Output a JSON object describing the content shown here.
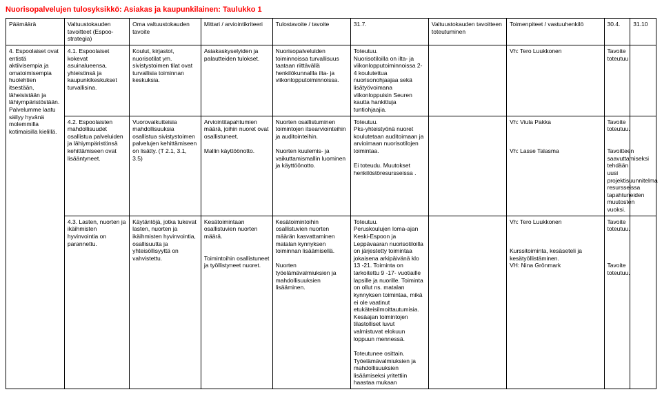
{
  "title": "Nuorisopalvelujen tulosyksikkö: Asiakas ja kaupunkilainen: Taulukko 1",
  "headers": {
    "c1": "Päämäärä",
    "c2": "Valtuustokauden tavoitteet (Espoo-strategia)",
    "c3": "Oma valtuustokauden tavoite",
    "c4": "Mittari / arviointikriteeri",
    "c5": "Tulostavoite / tavoite",
    "c6": "31.7.",
    "c7": "Valtuustokauden tavoitteen toteutuminen",
    "c8": "Toimenpiteet / vastuuhenkilö",
    "c9": "30.4.",
    "c10": "31.10"
  },
  "rows": [
    {
      "c1": "4. Espoolaiset ovat entistä aktiivisempia ja omatoimisempia huolehtien itsestään, läheisistään ja lähiympäristöstään. Palvelumme laatu säilyy hyvänä molemmilla kotimaisilla kielillä.",
      "c2": "4.1. Espoolaiset kokevat asuinalueensa, yhteisönsä ja kaupunkikeskukset turvallisina.",
      "c3": "Koulut, kirjastot, nuorisotilat ym. sivistystoimen tilat ovat turvallisia toiminnan keskuksia.",
      "c4": "Asiakaskyselyiden ja palautteiden tulokset.",
      "c5": "Nuorisopalveluiden toiminnoissa turvallisuus taataan riittävällä henkilökunnallla ilta- ja viikonlopputoiminnoissa.",
      "c6": "Toteutuu.\nNuorisotiloilla on ilta- ja viikonlopputoiminnoissa 2-4 koulutettua nuorisonohjaajaa sekä lisätyövoimana viikonloppuisin Seuren kautta hankittuja tuntiohjaajia.",
      "c7": "",
      "c8": "Vh: Tero Luukkonen",
      "c9": "Tavoite toteutuu",
      "c10": ""
    },
    {
      "c1": "",
      "c2": "4.2. Espoolaisten mahdollisuudet osallistua palveluiden ja lähiympäristönsä kehittämiseen ovat lisääntyneet.",
      "c3": "Vuorovaikutteisia mahdollisuuksia osallistua sivistystoimen palvelujen kehittämiseen on lisätty. (T 2.1, 3.1, 3.5)",
      "c4": "Arviointitapahtumien määrä, joihin nuoret ovat osallistuneet.\n\nMallin käyttöönotto.",
      "c5": "Nuorten osallistuminen toimintojen itsearviointeihin ja auditointeihin.\n\nNuorten kuulemis- ja vaikuttamismallin luominen ja käyttöönotto.",
      "c6": "Toteutuu.\nPks-yhteistyönä nuoret koulutetaan auditoimaan ja arvioimaan nuorisotilojen toimintaa.\n\nEi toteudu.  Muutokset henkilöstöresursseissa .",
      "c7": "",
      "c8": "Vh: Viula Pakka\n\n\n\nVh: Lasse Talasma",
      "c9": "Tavoite toteutuu.\n\n\nTavoitteen saavuttamiseksi tehdään uusi projektisuunnitelma resursseissa tapahtuneiden muutosten vuoksi.",
      "c10": ""
    },
    {
      "c1": "",
      "c2": "4.3. Lasten, nuorten ja ikäihmisten hyvinvointia on parannettu.",
      "c3": "Käytäntöjä, jotka tukevat lasten, nuorten ja ikäihmisten hyvinvointia, osallisuutta ja yhteisöllisyyttä on vahvistettu.",
      "c4": "Kesätoimintaan osallistuvien nuorten määrä.\n\n\nToimintoihin osallistuneet ja työllistyneet nuoret.",
      "c5": "Kesätoimintoihin osallistuvien nuorten määrän kasvattaminen matalan kynnyksen toiminnan lisäämisellä.\n\nNuorten työelämävalmiuksien ja mahdollisuuksien lisääminen.",
      "c6": "Toteutuu.\nPeruskoulujen loma-ajan Keski-Espoon ja Leppävaaran nuorisotiloilla on järjestetty toimintaa jokaisena arkipäivänä klo 13 -21.  Toiminta on tarkoitettu 9 -17- vuotiaille lapsille ja nuorille.  Toiminta on ollut ns. matalan kynnyksen toimintaa, mikä ei ole vaatinut etukäteisilmoittautumisia.\nKesäajan toimintojen tilastolliset luvut valmistuvat elokuun loppuun mennessä.\n\nToteutunee osittain.\nTyöelämävalmiuksien ja mahdollisuuksien lisäämiseksi yritettiin haastaa mukaan",
      "c7": "",
      "c8": "Vh: Tero Luukkonen\n\n\n\nKurssitoiminta, kesäseteli ja kesätyöllistäminen.\nVH: Nina Grönmark",
      "c9": "Tavoite toteutuu.\n\n\n\n\nTavoite toteutuu.",
      "c10": ""
    }
  ]
}
